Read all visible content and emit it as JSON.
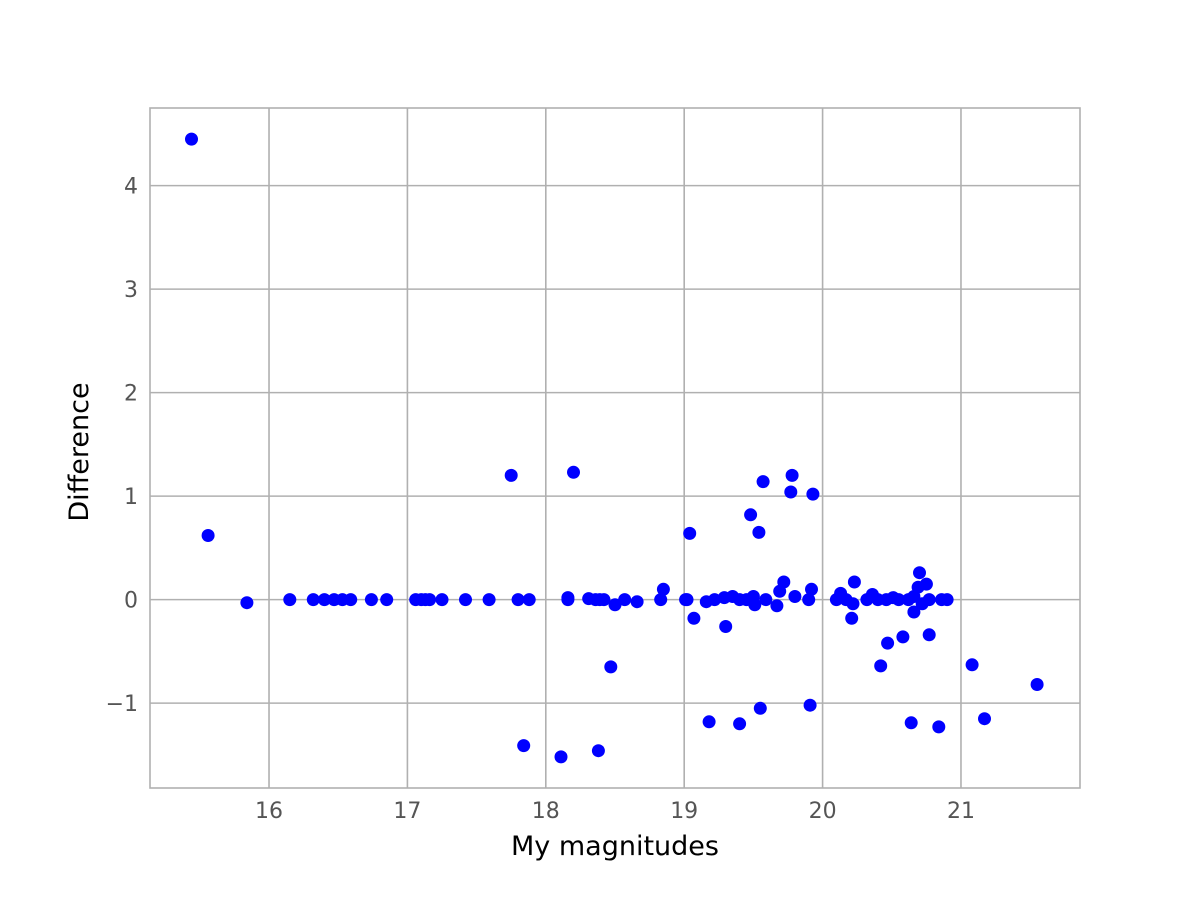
{
  "chart_data": {
    "type": "scatter",
    "title": "",
    "xlabel": "My magnitudes",
    "ylabel": "Difference",
    "xlim": [
      15.14,
      21.86
    ],
    "ylim": [
      -1.82,
      4.75
    ],
    "xticks": [
      16,
      17,
      18,
      19,
      20,
      21
    ],
    "xtick_labels": [
      "16",
      "17",
      "18",
      "19",
      "20",
      "21"
    ],
    "yticks": [
      -1,
      0,
      1,
      2,
      3,
      4
    ],
    "ytick_labels": [
      "−1",
      "0",
      "1",
      "2",
      "3",
      "4"
    ],
    "grid": true,
    "marker_color": "#0000ff",
    "series": [
      {
        "points": [
          [
            15.44,
            4.45
          ],
          [
            15.56,
            0.62
          ],
          [
            15.84,
            -0.03
          ],
          [
            16.15,
            0.0
          ],
          [
            16.32,
            0.0
          ],
          [
            16.4,
            0.0
          ],
          [
            16.47,
            0.0
          ],
          [
            16.53,
            0.0
          ],
          [
            16.59,
            0.0
          ],
          [
            16.74,
            0.0
          ],
          [
            16.85,
            0.0
          ],
          [
            17.06,
            0.0
          ],
          [
            17.1,
            0.0
          ],
          [
            17.13,
            0.0
          ],
          [
            17.16,
            0.0
          ],
          [
            17.25,
            0.0
          ],
          [
            17.42,
            0.0
          ],
          [
            17.59,
            0.0
          ],
          [
            17.75,
            1.2
          ],
          [
            17.8,
            0.0
          ],
          [
            17.84,
            -1.41
          ],
          [
            17.88,
            0.0
          ],
          [
            18.11,
            -1.52
          ],
          [
            18.16,
            0.02
          ],
          [
            18.16,
            0.0
          ],
          [
            18.2,
            1.23
          ],
          [
            18.31,
            0.01
          ],
          [
            18.36,
            0.0
          ],
          [
            18.38,
            -1.46
          ],
          [
            18.39,
            0.0
          ],
          [
            18.42,
            0.0
          ],
          [
            18.47,
            -0.65
          ],
          [
            18.5,
            -0.05
          ],
          [
            18.57,
            0.0
          ],
          [
            18.66,
            -0.02
          ],
          [
            18.83,
            0.0
          ],
          [
            18.85,
            0.1
          ],
          [
            19.01,
            0.0
          ],
          [
            19.02,
            0.0
          ],
          [
            19.04,
            0.64
          ],
          [
            19.07,
            -0.18
          ],
          [
            19.16,
            -0.02
          ],
          [
            19.18,
            -1.18
          ],
          [
            19.22,
            0.0
          ],
          [
            19.29,
            0.02
          ],
          [
            19.3,
            -0.26
          ],
          [
            19.35,
            0.03
          ],
          [
            19.4,
            -1.2
          ],
          [
            19.4,
            0.0
          ],
          [
            19.45,
            0.0
          ],
          [
            19.48,
            0.82
          ],
          [
            19.5,
            0.03
          ],
          [
            19.51,
            -0.05
          ],
          [
            19.54,
            0.65
          ],
          [
            19.55,
            -1.05
          ],
          [
            19.57,
            1.14
          ],
          [
            19.59,
            0.0
          ],
          [
            19.67,
            -0.06
          ],
          [
            19.69,
            0.08
          ],
          [
            19.72,
            0.17
          ],
          [
            19.77,
            1.04
          ],
          [
            19.78,
            1.2
          ],
          [
            19.8,
            0.03
          ],
          [
            19.9,
            0.0
          ],
          [
            19.91,
            -1.02
          ],
          [
            19.92,
            0.1
          ],
          [
            19.93,
            1.02
          ],
          [
            20.1,
            0.0
          ],
          [
            20.13,
            0.06
          ],
          [
            20.17,
            0.0
          ],
          [
            20.21,
            -0.18
          ],
          [
            20.22,
            -0.04
          ],
          [
            20.23,
            0.17
          ],
          [
            20.32,
            0.0
          ],
          [
            20.36,
            0.05
          ],
          [
            20.4,
            0.0
          ],
          [
            20.42,
            -0.64
          ],
          [
            20.46,
            0.0
          ],
          [
            20.47,
            -0.42
          ],
          [
            20.51,
            0.02
          ],
          [
            20.55,
            0.0
          ],
          [
            20.58,
            -0.36
          ],
          [
            20.62,
            0.0
          ],
          [
            20.64,
            -1.19
          ],
          [
            20.66,
            -0.12
          ],
          [
            20.66,
            0.03
          ],
          [
            20.69,
            0.12
          ],
          [
            20.7,
            0.26
          ],
          [
            20.72,
            -0.04
          ],
          [
            20.75,
            0.15
          ],
          [
            20.77,
            0.0
          ],
          [
            20.77,
            -0.34
          ],
          [
            20.84,
            -1.23
          ],
          [
            20.86,
            0.0
          ],
          [
            20.9,
            0.0
          ],
          [
            21.08,
            -0.63
          ],
          [
            21.17,
            -1.15
          ],
          [
            21.55,
            -0.82
          ]
        ]
      }
    ]
  }
}
